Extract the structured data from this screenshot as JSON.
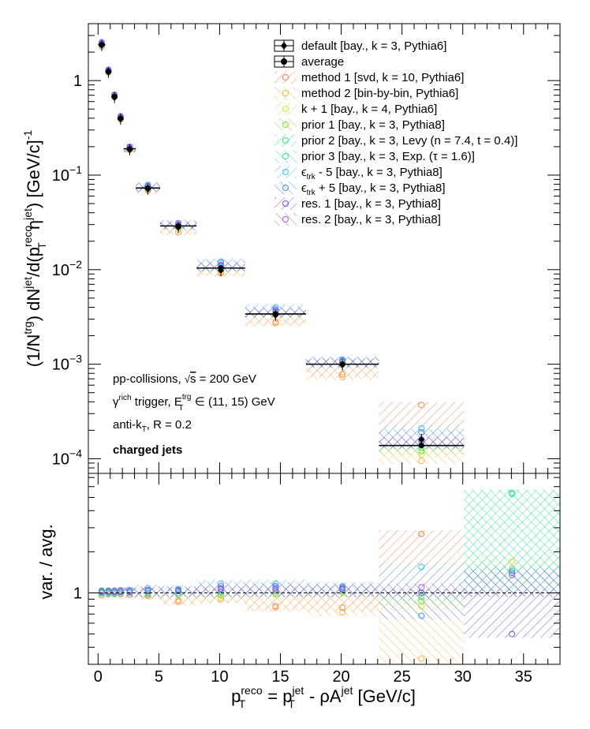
{
  "chart_data": {
    "type": "scatter",
    "legend": {
      "placement": "top-right",
      "entries": [
        {
          "id": "default",
          "label": "default [bay., k = 3, Pythia6]",
          "color": "#000000",
          "marker": "diamond"
        },
        {
          "id": "average",
          "label": "average",
          "color": "#000000",
          "marker": "circle"
        },
        {
          "id": "method1",
          "label": "method 1 [svd, k = 10, Pythia6]",
          "color": "#ff7f50",
          "marker": "open-circle"
        },
        {
          "id": "method2",
          "label": "method 2 [bin-by-bin, Pythia6]",
          "color": "#ffb347",
          "marker": "open-circle"
        },
        {
          "id": "kplus1",
          "label": "k + 1 [bay., k = 4, Pythia6]",
          "color": "#c8e632",
          "marker": "open-circle"
        },
        {
          "id": "prior1",
          "label": "prior 1 [bay., k = 3, Pythia8]",
          "color": "#7ddf3a",
          "marker": "open-circle"
        },
        {
          "id": "prior2",
          "label": "prior 2 [bay., k = 3, Levy (n = 7.4, t = 0.4)]",
          "color": "#2ee878",
          "marker": "open-circle"
        },
        {
          "id": "prior3",
          "label": "prior 3 [bay., k = 3, Exp. (τ = 1.6)]",
          "color": "#30e0c0",
          "marker": "open-circle"
        },
        {
          "id": "trkm5",
          "label_main": "ϵ",
          "label_sub": "trk",
          "label_rest": " - 5 [bay., k = 3, Pythia8]",
          "color": "#36c0f0",
          "marker": "open-circle"
        },
        {
          "id": "trkp5",
          "label_main": "ϵ",
          "label_sub": "trk",
          "label_rest": " + 5 [bay., k = 3, Pythia8]",
          "color": "#4a8cf0",
          "marker": "open-circle"
        },
        {
          "id": "res1",
          "label": "res. 1 [bay., k = 3, Pythia8]",
          "color": "#7a4ce0",
          "marker": "open-circle"
        },
        {
          "id": "res2",
          "label": "res. 2 [bay., k = 3, Pythia8]",
          "color": "#b05ce8",
          "marker": "open-circle"
        }
      ]
    },
    "top_panel": {
      "yscale": "log",
      "ylim": [
        7e-05,
        4
      ],
      "ytick_labels": [
        {
          "value": 1,
          "label": "1"
        },
        {
          "value": 0.1,
          "base": "10",
          "exp": "−1"
        },
        {
          "value": 0.01,
          "base": "10",
          "exp": "−2"
        },
        {
          "value": 0.001,
          "base": "10",
          "exp": "−3"
        },
        {
          "value": 0.0001,
          "base": "10",
          "exp": "−4"
        }
      ],
      "ylabel": {
        "p1": "(1/N",
        "s1": "trg",
        "p2": ") dN",
        "s2": "jet",
        "p3": "/d(p",
        "s3": "reco",
        "sub3": "T",
        "p4": " η",
        "s4": "jet",
        "p5": ") [GeV/c]",
        "s5": "-1"
      },
      "bins": [
        {
          "xlo": 0.0,
          "xhi": 0.6,
          "x": 0.3,
          "avg": 2.4,
          "default": 2.35,
          "m1": 2.3,
          "m2": 2.45,
          "kp1": 2.4,
          "p1": 2.42,
          "p2": 2.4,
          "p3": 2.38,
          "tm5": 2.5,
          "tp5": 2.45,
          "r1": 2.45,
          "r2": 2.55
        },
        {
          "xlo": 0.6,
          "xhi": 1.1,
          "x": 0.85,
          "avg": 1.25,
          "default": 1.22,
          "m1": 1.22,
          "m2": 1.26,
          "kp1": 1.25,
          "p1": 1.24,
          "p2": 1.25,
          "p3": 1.24,
          "tm5": 1.3,
          "tp5": 1.28,
          "r1": 1.27,
          "r2": 1.3
        },
        {
          "xlo": 1.1,
          "xhi": 1.6,
          "x": 1.35,
          "avg": 0.68,
          "default": 0.66,
          "m1": 0.67,
          "m2": 0.69,
          "kp1": 0.68,
          "p1": 0.68,
          "p2": 0.68,
          "p3": 0.67,
          "tm5": 0.71,
          "tp5": 0.7,
          "r1": 0.7,
          "r2": 0.71
        },
        {
          "xlo": 1.6,
          "xhi": 2.1,
          "x": 1.85,
          "avg": 0.4,
          "default": 0.39,
          "m1": 0.39,
          "m2": 0.41,
          "kp1": 0.4,
          "p1": 0.4,
          "p2": 0.4,
          "p3": 0.4,
          "tm5": 0.42,
          "tp5": 0.41,
          "r1": 0.41,
          "r2": 0.42
        },
        {
          "xlo": 2.1,
          "xhi": 3.1,
          "x": 2.6,
          "avg": 0.19,
          "default": 0.185,
          "m1": 0.185,
          "m2": 0.19,
          "kp1": 0.19,
          "p1": 0.19,
          "p2": 0.19,
          "p3": 0.19,
          "tm5": 0.2,
          "tp5": 0.196,
          "r1": 0.195,
          "r2": 0.198
        },
        {
          "xlo": 3.1,
          "xhi": 5.1,
          "x": 4.1,
          "avg": 0.073,
          "default": 0.071,
          "m1": 0.069,
          "m2": 0.071,
          "kp1": 0.072,
          "p1": 0.071,
          "p2": 0.073,
          "p3": 0.072,
          "tm5": 0.079,
          "tp5": 0.077,
          "r1": 0.075,
          "r2": 0.076
        },
        {
          "xlo": 5.1,
          "xhi": 8.1,
          "x": 6.6,
          "avg": 0.029,
          "default": 0.028,
          "m1": 0.025,
          "m2": 0.025,
          "kp1": 0.028,
          "p1": 0.028,
          "p2": 0.029,
          "p3": 0.029,
          "tm5": 0.031,
          "tp5": 0.03,
          "r1": 0.03,
          "r2": 0.031
        },
        {
          "xlo": 8.1,
          "xhi": 12.1,
          "x": 10.1,
          "avg": 0.0104,
          "default": 0.0098,
          "m1": 0.0092,
          "m2": 0.0094,
          "kp1": 0.0099,
          "p1": 0.0101,
          "p2": 0.0105,
          "p3": 0.0106,
          "tm5": 0.0122,
          "tp5": 0.0118,
          "r1": 0.011,
          "r2": 0.0112
        },
        {
          "xlo": 12.1,
          "xhi": 17.1,
          "x": 14.6,
          "avg": 0.0034,
          "default": 0.0033,
          "m1": 0.0028,
          "m2": 0.0027,
          "kp1": 0.0033,
          "p1": 0.0034,
          "p2": 0.0035,
          "p3": 0.0036,
          "tm5": 0.004,
          "tp5": 0.0038,
          "r1": 0.0036,
          "r2": 0.0037
        },
        {
          "xlo": 17.1,
          "xhi": 23.1,
          "x": 20.1,
          "avg": 0.001,
          "default": 0.00098,
          "m1": 0.00078,
          "m2": 0.00073,
          "kp1": 0.001,
          "p1": 0.00102,
          "p2": 0.00105,
          "p3": 0.00108,
          "tm5": 0.00112,
          "tp5": 0.0011,
          "r1": 0.00106,
          "r2": 0.00107
        },
        {
          "xlo": 23.1,
          "xhi": 30.1,
          "x": 26.6,
          "avg": 0.000138,
          "default": 0.00016,
          "m1": 0.00037,
          "m2": 9.5e-05,
          "kp1": 0.00011,
          "p1": 0.00012,
          "p2": 0.00013,
          "p3": 0.00014,
          "tm5": 0.00021,
          "tp5": 0.00019,
          "r1": 0.000155,
          "r2": 0.00016
        }
      ]
    },
    "bottom_panel": {
      "yscale": "log",
      "ylim": [
        0.3,
        7.5
      ],
      "ytick_labels": [
        {
          "value": 1,
          "label": "1"
        }
      ],
      "ylabel": "var. / avg.",
      "reference_line": 1,
      "ratio_bands": [
        {
          "series": "method1",
          "color": "#ff7f50",
          "bins": [
            [
              0.0,
              0.6,
              0.96
            ],
            [
              0.6,
              1.1,
              0.98
            ],
            [
              1.1,
              1.6,
              0.98
            ],
            [
              1.6,
              2.1,
              0.98
            ],
            [
              2.1,
              3.1,
              0.97
            ],
            [
              3.1,
              5.1,
              0.95
            ],
            [
              5.1,
              8.1,
              0.88
            ],
            [
              8.1,
              12.1,
              0.9
            ],
            [
              12.1,
              17.1,
              0.8
            ],
            [
              17.1,
              23.1,
              0.78
            ],
            [
              23.1,
              30.1,
              2.7
            ]
          ]
        },
        {
          "series": "method2",
          "color": "#ffb347",
          "bins": [
            [
              0.0,
              0.6,
              1.02
            ],
            [
              0.6,
              1.1,
              1.01
            ],
            [
              1.1,
              1.6,
              1.01
            ],
            [
              1.6,
              2.1,
              1.02
            ],
            [
              2.1,
              3.1,
              1.0
            ],
            [
              3.1,
              5.1,
              0.97
            ],
            [
              5.1,
              8.1,
              0.86
            ],
            [
              8.1,
              12.1,
              0.9
            ],
            [
              12.1,
              17.1,
              0.78
            ],
            [
              17.1,
              23.1,
              0.72
            ],
            [
              23.1,
              30.1,
              0.33
            ]
          ]
        },
        {
          "series": "kplus1",
          "color": "#c8e632",
          "bins": [
            [
              0.0,
              0.6,
              1.0
            ],
            [
              0.6,
              1.1,
              1.0
            ],
            [
              1.1,
              1.6,
              1.0
            ],
            [
              1.6,
              2.1,
              1.0
            ],
            [
              2.1,
              3.1,
              1.0
            ],
            [
              3.1,
              5.1,
              0.99
            ],
            [
              5.1,
              8.1,
              0.97
            ],
            [
              8.1,
              12.1,
              0.95
            ],
            [
              12.1,
              17.1,
              0.97
            ],
            [
              17.1,
              23.1,
              1.0
            ],
            [
              23.1,
              30.1,
              0.8
            ],
            [
              30.1,
              38,
              1.7
            ]
          ]
        },
        {
          "series": "prior1",
          "color": "#7ddf3a",
          "bins": [
            [
              0.0,
              0.6,
              1.01
            ],
            [
              0.6,
              1.1,
              1.0
            ],
            [
              1.1,
              1.6,
              1.0
            ],
            [
              1.6,
              2.1,
              1.0
            ],
            [
              2.1,
              3.1,
              1.0
            ],
            [
              3.1,
              5.1,
              0.98
            ],
            [
              5.1,
              8.1,
              0.97
            ],
            [
              8.1,
              12.1,
              0.97
            ],
            [
              12.1,
              17.1,
              1.0
            ],
            [
              17.1,
              23.1,
              1.02
            ],
            [
              23.1,
              30.1,
              0.87
            ],
            [
              30.1,
              38,
              1.5
            ]
          ]
        },
        {
          "series": "prior2",
          "color": "#2ee878",
          "bins": [
            [
              0.0,
              0.6,
              1.0
            ],
            [
              0.6,
              1.1,
              1.0
            ],
            [
              1.1,
              1.6,
              1.0
            ],
            [
              1.6,
              2.1,
              1.0
            ],
            [
              2.1,
              3.1,
              1.0
            ],
            [
              3.1,
              5.1,
              1.0
            ],
            [
              5.1,
              8.1,
              1.0
            ],
            [
              8.1,
              12.1,
              1.01
            ],
            [
              12.1,
              17.1,
              1.03
            ],
            [
              17.1,
              23.1,
              1.05
            ],
            [
              23.1,
              30.1,
              0.94
            ],
            [
              30.1,
              38,
              5.3
            ]
          ]
        },
        {
          "series": "prior3",
          "color": "#30e0c0",
          "bins": [
            [
              0.0,
              0.6,
              0.99
            ],
            [
              0.6,
              1.1,
              0.99
            ],
            [
              1.1,
              1.6,
              0.99
            ],
            [
              1.6,
              2.1,
              1.0
            ],
            [
              2.1,
              3.1,
              1.0
            ],
            [
              3.1,
              5.1,
              0.99
            ],
            [
              5.1,
              8.1,
              1.0
            ],
            [
              8.1,
              12.1,
              1.02
            ],
            [
              12.1,
              17.1,
              1.06
            ],
            [
              17.1,
              23.1,
              1.08
            ],
            [
              23.1,
              30.1,
              1.0
            ],
            [
              30.1,
              38,
              5.4
            ]
          ]
        },
        {
          "series": "trkm5",
          "color": "#36c0f0",
          "bins": [
            [
              0.0,
              0.6,
              1.04
            ],
            [
              0.6,
              1.1,
              1.04
            ],
            [
              1.1,
              1.6,
              1.04
            ],
            [
              1.6,
              2.1,
              1.05
            ],
            [
              2.1,
              3.1,
              1.05
            ],
            [
              3.1,
              5.1,
              1.08
            ],
            [
              5.1,
              8.1,
              1.07
            ],
            [
              8.1,
              12.1,
              1.17
            ],
            [
              12.1,
              17.1,
              1.17
            ],
            [
              17.1,
              23.1,
              1.12
            ],
            [
              23.1,
              30.1,
              1.55
            ],
            [
              30.1,
              38,
              1.45
            ]
          ]
        },
        {
          "series": "trkp5",
          "color": "#4a8cf0",
          "bins": [
            [
              0.0,
              0.6,
              1.02
            ],
            [
              0.6,
              1.1,
              1.03
            ],
            [
              1.1,
              1.6,
              1.03
            ],
            [
              1.6,
              2.1,
              1.03
            ],
            [
              2.1,
              3.1,
              1.03
            ],
            [
              3.1,
              5.1,
              1.05
            ],
            [
              5.1,
              8.1,
              1.04
            ],
            [
              8.1,
              12.1,
              1.12
            ],
            [
              12.1,
              17.1,
              1.12
            ],
            [
              17.1,
              23.1,
              1.1
            ],
            [
              23.1,
              30.1,
              0.68
            ],
            [
              30.1,
              38,
              1.4
            ]
          ]
        },
        {
          "series": "res1",
          "color": "#7a4ce0",
          "bins": [
            [
              0.0,
              0.6,
              1.02
            ],
            [
              0.6,
              1.1,
              1.02
            ],
            [
              1.1,
              1.6,
              1.02
            ],
            [
              1.6,
              2.1,
              1.02
            ],
            [
              2.1,
              3.1,
              1.02
            ],
            [
              3.1,
              5.1,
              1.03
            ],
            [
              5.1,
              8.1,
              1.03
            ],
            [
              8.1,
              12.1,
              1.06
            ],
            [
              12.1,
              17.1,
              1.06
            ],
            [
              17.1,
              23.1,
              1.06
            ],
            [
              23.1,
              30.1,
              1.0
            ],
            [
              30.1,
              38,
              0.5
            ]
          ]
        },
        {
          "series": "res2",
          "color": "#b05ce8",
          "bins": [
            [
              0.0,
              0.6,
              1.03
            ],
            [
              0.6,
              1.1,
              1.03
            ],
            [
              1.1,
              1.6,
              1.03
            ],
            [
              1.6,
              2.1,
              1.03
            ],
            [
              2.1,
              3.1,
              1.03
            ],
            [
              3.1,
              5.1,
              1.04
            ],
            [
              5.1,
              8.1,
              1.05
            ],
            [
              8.1,
              12.1,
              1.08
            ],
            [
              12.1,
              17.1,
              1.09
            ],
            [
              17.1,
              23.1,
              1.08
            ],
            [
              23.1,
              30.1,
              1.1
            ],
            [
              30.1,
              38,
              1.35
            ]
          ]
        }
      ]
    },
    "xaxis": {
      "xlim": [
        -0.8,
        38
      ],
      "ticks": [
        0,
        5,
        10,
        15,
        20,
        25,
        30,
        35
      ],
      "tick_labels": [
        "0",
        "5",
        "10",
        "15",
        "20",
        "25",
        "30",
        "35"
      ],
      "label": {
        "p1": "p",
        "s1": "reco",
        "sub1": "T",
        "p2": " = p",
        "s2": "jet",
        "sub2": "T",
        "p3": " - ρA",
        "s3": "jet",
        "p4": " [GeV/c]"
      }
    },
    "annotations": {
      "line1_pre": "pp-collisions, ",
      "line1_sqrt": "√",
      "line1_s": "s",
      "line1_post": " = 200 GeV",
      "line2_g": "γ",
      "line2_gsup": "rich",
      "line2_mid": " trigger, E",
      "line2_esup": "trg",
      "line2_esub": "T",
      "line2_post": " ∈ (11, 15) GeV",
      "line3_pre": "anti-k",
      "line3_sub": "T",
      "line3_post": ", R = 0.2",
      "line4": "charged jets"
    }
  }
}
